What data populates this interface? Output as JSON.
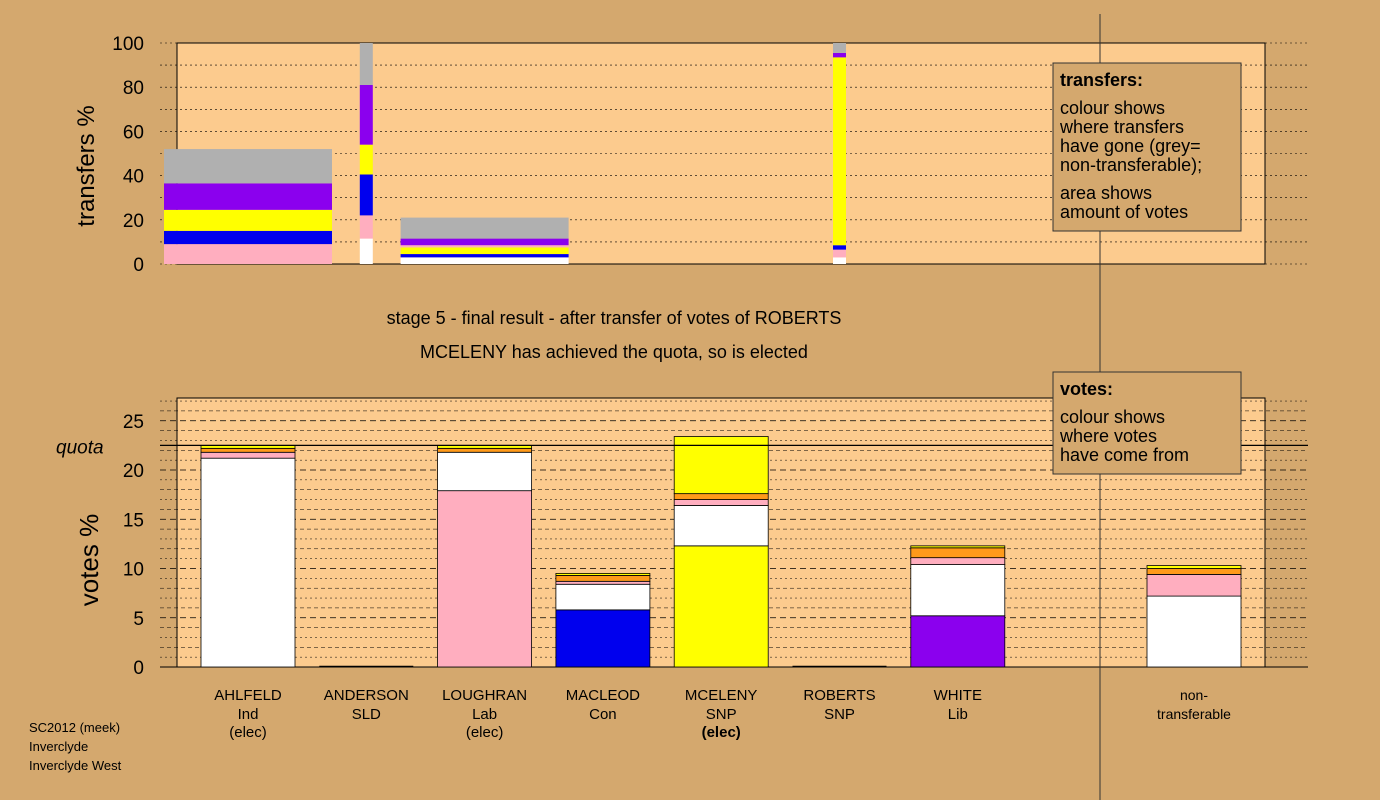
{
  "title_lines": {
    "stage": "stage 5 - final result - after transfer of votes of ROBERTS",
    "outcome": "MCELENY has achieved the quota, so is elected"
  },
  "footer": {
    "line1": "SC2012 (meek)",
    "line2": "Inverclyde",
    "line3": "Inverclyde West"
  },
  "colors": {
    "background": "#d4a86e",
    "plot": "#fccb8e",
    "white": "#ffffff",
    "pink": "#ffaebf",
    "blue": "#0000ee",
    "yellow": "#ffff00",
    "purple": "#8b00ee",
    "grey": "#b0b0b0",
    "orange": "#ff9a1a"
  },
  "legend_transfers": {
    "heading": "transfers:",
    "lines": [
      "colour shows",
      "where transfers",
      "have gone (grey=",
      "non-transferable);",
      "area shows",
      "amount of votes"
    ]
  },
  "legend_votes": {
    "heading": "votes:",
    "lines": [
      "colour shows",
      "where votes",
      "have come from"
    ]
  },
  "chart_data": [
    {
      "type": "bar",
      "name": "transfers",
      "ylabel": "transfers %",
      "ylim": [
        0,
        100
      ],
      "yticks": [
        0,
        20,
        40,
        60,
        80,
        100
      ],
      "bars": [
        {
          "slot": 0,
          "width": "wide",
          "segments": [
            {
              "color": "pink",
              "from": 0,
              "to": 9
            },
            {
              "color": "blue",
              "from": 9,
              "to": 15
            },
            {
              "color": "yellow",
              "from": 15,
              "to": 24.5
            },
            {
              "color": "purple",
              "from": 24.5,
              "to": 36.5
            },
            {
              "color": "grey",
              "from": 36.5,
              "to": 52
            }
          ]
        },
        {
          "slot": 1,
          "width": "narrow",
          "segments": [
            {
              "color": "white",
              "from": 0,
              "to": 11.5
            },
            {
              "color": "pink",
              "from": 11.5,
              "to": 22
            },
            {
              "color": "blue",
              "from": 22,
              "to": 40.5
            },
            {
              "color": "yellow",
              "from": 40.5,
              "to": 54
            },
            {
              "color": "purple",
              "from": 54,
              "to": 81
            },
            {
              "color": "grey",
              "from": 81,
              "to": 100
            }
          ]
        },
        {
          "slot": 2,
          "width": "wide",
          "segments": [
            {
              "color": "white",
              "from": 0,
              "to": 3
            },
            {
              "color": "blue",
              "from": 3,
              "to": 4.5
            },
            {
              "color": "yellow",
              "from": 4.5,
              "to": 7.5
            },
            {
              "color": "pink",
              "from": 7.5,
              "to": 8.5
            },
            {
              "color": "purple",
              "from": 8.5,
              "to": 11.5
            },
            {
              "color": "grey",
              "from": 11.5,
              "to": 21
            }
          ]
        },
        {
          "slot": 5,
          "width": "narrow",
          "segments": [
            {
              "color": "white",
              "from": 0,
              "to": 3
            },
            {
              "color": "pink",
              "from": 3,
              "to": 6.5
            },
            {
              "color": "blue",
              "from": 6.5,
              "to": 8.5
            },
            {
              "color": "yellow",
              "from": 8.5,
              "to": 93.5
            },
            {
              "color": "purple",
              "from": 93.5,
              "to": 95.5
            },
            {
              "color": "grey",
              "from": 95.5,
              "to": 100
            }
          ]
        }
      ]
    },
    {
      "type": "bar",
      "name": "votes",
      "ylabel": "votes %",
      "ylim": [
        0,
        27
      ],
      "yticks": [
        0,
        5,
        10,
        15,
        20,
        25
      ],
      "quota": 22.5,
      "quota_label": "quota",
      "candidates": [
        {
          "name": "AHLFELD",
          "party": "Ind",
          "status": "(elec)",
          "segments": [
            {
              "color": "white",
              "from": 0,
              "to": 21.2
            },
            {
              "color": "pink",
              "from": 21.2,
              "to": 21.8
            },
            {
              "color": "orange",
              "from": 21.8,
              "to": 22.2
            },
            {
              "color": "yellow",
              "from": 22.2,
              "to": 22.5
            }
          ]
        },
        {
          "name": "ANDERSON",
          "party": "SLD",
          "status": "",
          "segments": []
        },
        {
          "name": "LOUGHRAN",
          "party": "Lab",
          "status": "(elec)",
          "segments": [
            {
              "color": "pink",
              "from": 0,
              "to": 17.9
            },
            {
              "color": "white",
              "from": 17.9,
              "to": 21.8
            },
            {
              "color": "orange",
              "from": 21.8,
              "to": 22.2
            },
            {
              "color": "yellow",
              "from": 22.2,
              "to": 22.5
            }
          ]
        },
        {
          "name": "MACLEOD",
          "party": "Con",
          "status": "",
          "segments": [
            {
              "color": "blue",
              "from": 0,
              "to": 5.8
            },
            {
              "color": "white",
              "from": 5.8,
              "to": 8.4
            },
            {
              "color": "pink",
              "from": 8.4,
              "to": 8.7
            },
            {
              "color": "orange",
              "from": 8.7,
              "to": 9.3
            },
            {
              "color": "yellow",
              "from": 9.3,
              "to": 9.5
            }
          ]
        },
        {
          "name": "MCELENY",
          "party": "SNP",
          "status": "(elec)",
          "segments": [
            {
              "color": "yellow",
              "from": 0,
              "to": 12.3
            },
            {
              "color": "white",
              "from": 12.3,
              "to": 16.4
            },
            {
              "color": "pink",
              "from": 16.4,
              "to": 17.0
            },
            {
              "color": "orange",
              "from": 17.0,
              "to": 17.6
            },
            {
              "color": "yellow",
              "from": 17.6,
              "to": 23.4
            }
          ]
        },
        {
          "name": "ROBERTS",
          "party": "SNP",
          "status": "",
          "segments": []
        },
        {
          "name": "WHITE",
          "party": "Lib",
          "status": "",
          "segments": [
            {
              "color": "purple",
              "from": 0,
              "to": 5.2
            },
            {
              "color": "white",
              "from": 5.2,
              "to": 10.4
            },
            {
              "color": "pink",
              "from": 10.4,
              "to": 11.1
            },
            {
              "color": "orange",
              "from": 11.1,
              "to": 12.1
            },
            {
              "color": "yellow",
              "from": 12.1,
              "to": 12.3
            }
          ]
        },
        {
          "name": "non-",
          "party": "transferable",
          "status": "",
          "segments": [
            {
              "color": "white",
              "from": 0,
              "to": 7.2
            },
            {
              "color": "pink",
              "from": 7.2,
              "to": 9.4
            },
            {
              "color": "orange",
              "from": 9.4,
              "to": 10.0
            },
            {
              "color": "yellow",
              "from": 10.0,
              "to": 10.3
            }
          ]
        }
      ]
    }
  ]
}
